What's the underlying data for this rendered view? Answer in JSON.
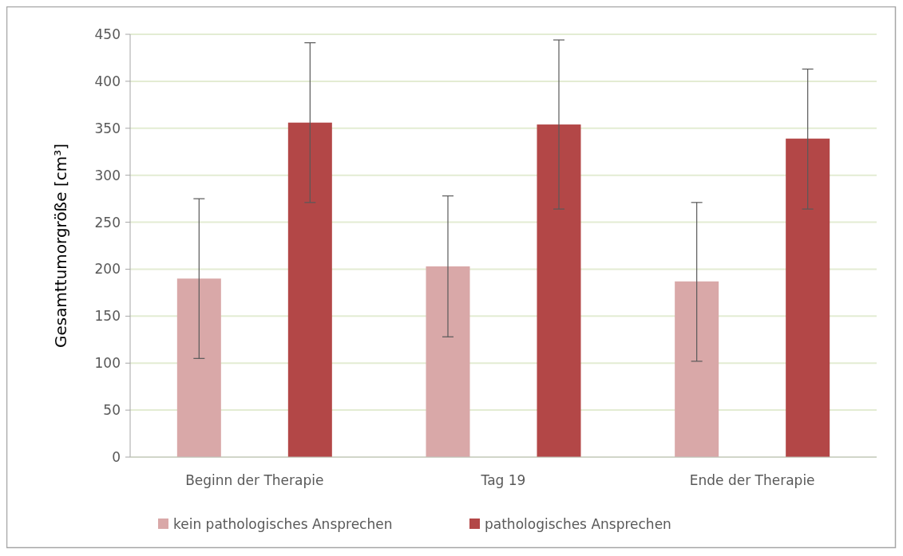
{
  "chart_data": {
    "type": "bar",
    "ylabel": "Gesamttumorgröße [cm³]",
    "categories": [
      "Beginn der Therapie",
      "Tag 19",
      "Ende der Therapie"
    ],
    "series": [
      {
        "name": "kein pathologisches Ansprechen",
        "color": "#d9a8a8",
        "values": [
          190,
          203,
          187
        ],
        "errors": [
          [
            105,
            275
          ],
          [
            128,
            278
          ],
          [
            102,
            271
          ]
        ]
      },
      {
        "name": "pathologisches Ansprechen",
        "color": "#b34747",
        "values": [
          356,
          354,
          339
        ],
        "errors": [
          [
            271,
            441
          ],
          [
            264,
            444
          ],
          [
            264,
            413
          ]
        ]
      }
    ],
    "ylim": [
      0,
      450
    ],
    "yticks": [
      0,
      50,
      100,
      150,
      200,
      250,
      300,
      350,
      400,
      450
    ],
    "grid": "y",
    "legend": "bottom"
  }
}
